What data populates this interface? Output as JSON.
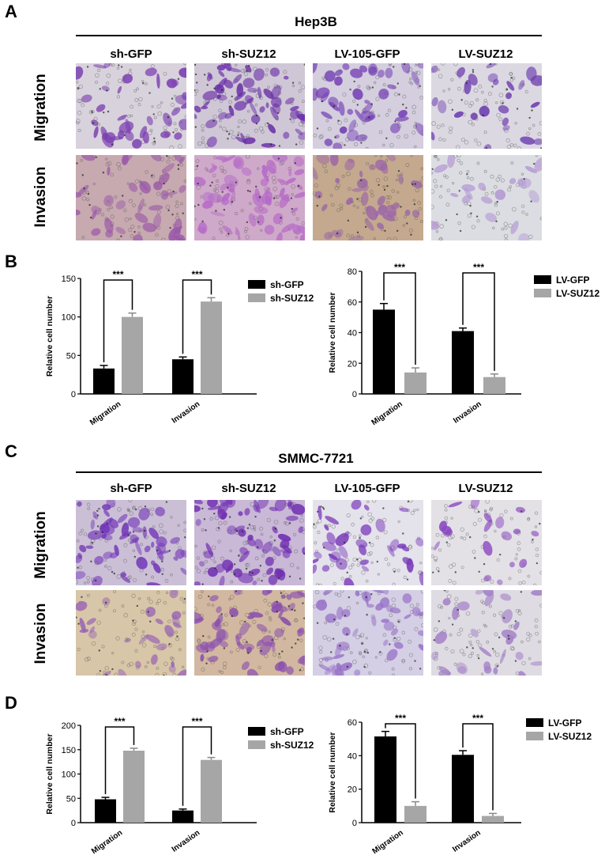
{
  "panels": {
    "A": {
      "letter": "A",
      "cell_line": "Hep3B"
    },
    "B": {
      "letter": "B"
    },
    "C": {
      "letter": "C",
      "cell_line": "SMMC-7721"
    },
    "D": {
      "letter": "D"
    }
  },
  "columns": [
    "sh-GFP",
    "sh-SUZ12",
    "LV-105-GFP",
    "LV-SUZ12"
  ],
  "rows": [
    "Migration",
    "Invasion"
  ],
  "micrographs": {
    "A": [
      {
        "bg": "#d8d2dc",
        "cell": "#7b3fb0",
        "density": 0.55
      },
      {
        "bg": "#cfc7d6",
        "cell": "#6a2fa8",
        "density": 0.9
      },
      {
        "bg": "#d4cede",
        "cell": "#7440b4",
        "density": 0.6
      },
      {
        "bg": "#dcd8e2",
        "cell": "#6d3fb0",
        "density": 0.3
      },
      {
        "bg": "#c7a9b0",
        "cell": "#9b5aa8",
        "density": 0.55
      },
      {
        "bg": "#cfa9c9",
        "cell": "#b56ac8",
        "density": 0.85
      },
      {
        "bg": "#c4a98e",
        "cell": "#9b66a6",
        "density": 0.5
      },
      {
        "bg": "#dcdde2",
        "cell": "#b49ad4",
        "density": 0.2
      }
    ],
    "C": [
      {
        "bg": "#cbbfd6",
        "cell": "#7338b8",
        "density": 0.8
      },
      {
        "bg": "#c9b8d6",
        "cell": "#7130b2",
        "density": 0.95
      },
      {
        "bg": "#e4e2ea",
        "cell": "#7a3cbc",
        "density": 0.45
      },
      {
        "bg": "#e3e1e6",
        "cell": "#8b4ac0",
        "density": 0.2
      },
      {
        "bg": "#d8c6a8",
        "cell": "#9a66b4",
        "density": 0.3
      },
      {
        "bg": "#d2b8a0",
        "cell": "#8a4fae",
        "density": 0.85
      },
      {
        "bg": "#d4cfe4",
        "cell": "#9872c8",
        "density": 0.6
      },
      {
        "bg": "#dedbe2",
        "cell": "#a482c8",
        "density": 0.35
      }
    ]
  },
  "colors": {
    "black_bar": "#000000",
    "gray_bar": "#a6a6a6"
  },
  "chart_data": [
    {
      "panel": "B",
      "type": "bar",
      "categories": [
        "Migration",
        "Invasion"
      ],
      "series": [
        {
          "name": "sh-GFP",
          "values": [
            33,
            45
          ],
          "errors": [
            4,
            3
          ]
        },
        {
          "name": "sh-SUZ12",
          "values": [
            100,
            120
          ],
          "errors": [
            5,
            5
          ]
        }
      ],
      "ylabel": "Relative cell number",
      "ylim": [
        0,
        150
      ],
      "yticks": [
        0,
        50,
        100,
        150
      ],
      "significance": [
        "***",
        "***"
      ],
      "legend": "right"
    },
    {
      "panel": "B",
      "type": "bar",
      "categories": [
        "Migration",
        "Invasion"
      ],
      "series": [
        {
          "name": "LV-GFP",
          "values": [
            55,
            41
          ],
          "errors": [
            4,
            2
          ]
        },
        {
          "name": "LV-SUZ12",
          "values": [
            14,
            11
          ],
          "errors": [
            3,
            2
          ]
        }
      ],
      "ylabel": "Relative cell number",
      "ylim": [
        0,
        80
      ],
      "yticks": [
        0,
        20,
        40,
        60,
        80
      ],
      "significance": [
        "***",
        "***"
      ],
      "legend": "right"
    },
    {
      "panel": "D",
      "type": "bar",
      "categories": [
        "Migration",
        "Invasion"
      ],
      "series": [
        {
          "name": "sh-GFP",
          "values": [
            48,
            25
          ],
          "errors": [
            4,
            3
          ]
        },
        {
          "name": "sh-SUZ12",
          "values": [
            148,
            129
          ],
          "errors": [
            5,
            5
          ]
        }
      ],
      "ylabel": "Relative cell number",
      "ylim": [
        0,
        200
      ],
      "yticks": [
        0,
        50,
        100,
        150,
        200
      ],
      "significance": [
        "***",
        "***"
      ],
      "legend": "right"
    },
    {
      "panel": "D",
      "type": "bar",
      "categories": [
        "Migration",
        "Invasion"
      ],
      "series": [
        {
          "name": "LV-GFP",
          "values": [
            51.5,
            40.5
          ],
          "errors": [
            3,
            2.5
          ]
        },
        {
          "name": "LV-SUZ12",
          "values": [
            10,
            4
          ],
          "errors": [
            2.5,
            1.5
          ]
        }
      ],
      "ylabel": "Relative cell number",
      "ylim": [
        0,
        60
      ],
      "yticks": [
        0,
        20,
        40,
        60
      ],
      "significance": [
        "***",
        "***"
      ],
      "legend": "right"
    }
  ]
}
